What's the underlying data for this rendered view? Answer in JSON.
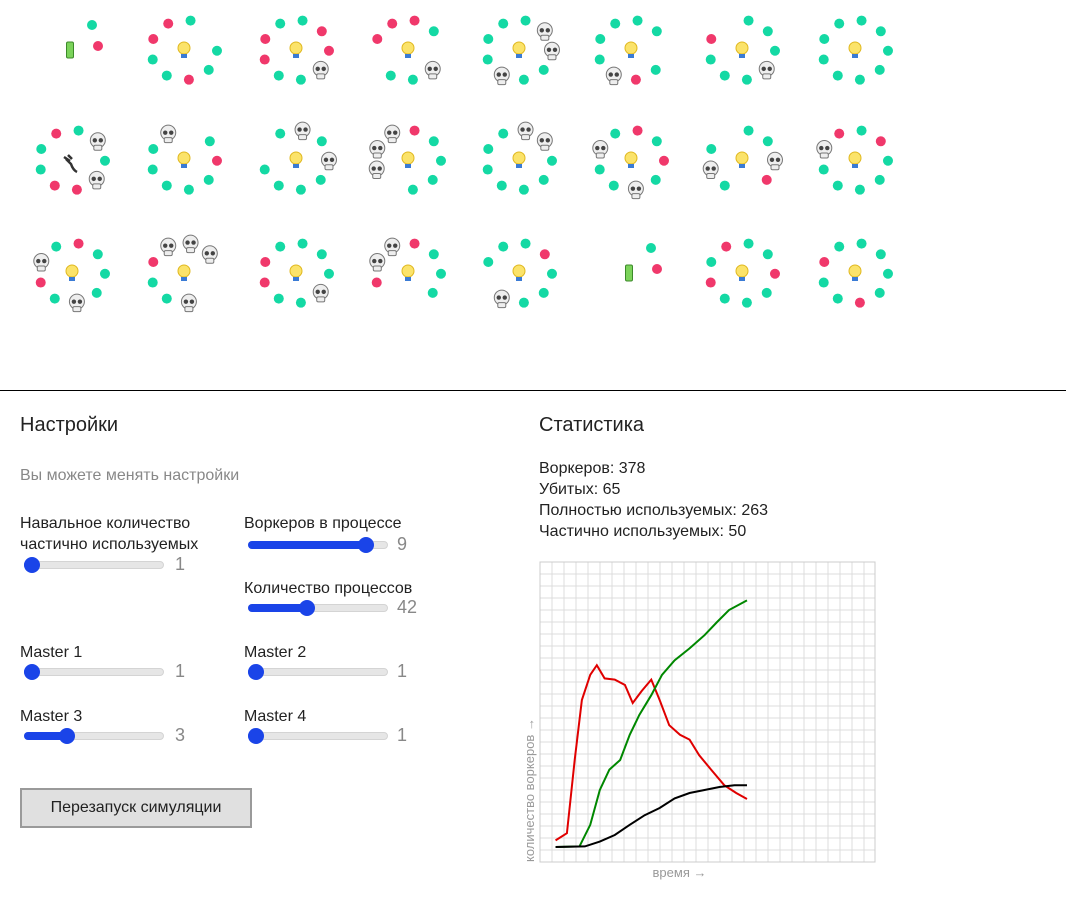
{
  "settings": {
    "title": "Настройки",
    "subtitle": "Вы можете менять настройки",
    "sliders": [
      {
        "label": "Навальное количество частично используемых",
        "value": 1,
        "min": 1,
        "max": 8
      },
      {
        "label": "Воркеров в процессе",
        "value": 9,
        "min": 1,
        "max": 10
      },
      {
        "label": "Количество процессов",
        "value": 42,
        "min": 1,
        "max": 100
      },
      {
        "label": "Master 1",
        "value": 1,
        "min": 1,
        "max": 8
      },
      {
        "label": "Master 2",
        "value": 1,
        "min": 1,
        "max": 8
      },
      {
        "label": "Master 3",
        "value": 3,
        "min": 1,
        "max": 8
      },
      {
        "label": "Master 4",
        "value": 1,
        "min": 1,
        "max": 8
      }
    ],
    "button": "Перезапуск симуляции"
  },
  "statistics": {
    "title": "Статистика",
    "lines": [
      "Воркеров: 378",
      "Убитых: 65",
      "Полностью используемых: 263",
      "Частично используемых: 50"
    ]
  },
  "chart_data": {
    "type": "line",
    "x_label": "время →",
    "y_label": "количество воркеров →",
    "xlim": [
      0,
      28
    ],
    "ylim": [
      0,
      25
    ],
    "grid": true,
    "series": [
      {
        "color": "#e00000",
        "x": [
          1.3,
          2.25,
          2.9,
          3.5,
          4.2,
          4.75,
          5.4,
          6.25,
          7.1,
          7.75,
          8.5,
          9.3,
          10,
          10.8,
          11.7,
          12.5,
          13.3,
          14.3,
          15.4,
          16.4,
          17.3
        ],
        "values": [
          1.8,
          2.4,
          8.5,
          13.5,
          15.6,
          16.4,
          15.3,
          15.2,
          14.75,
          13.25,
          14.25,
          15.2,
          13.5,
          11.4,
          10.6,
          10.2,
          8.9,
          7.7,
          6.4,
          5.75,
          5.25
        ]
      },
      {
        "color": "#008800",
        "x": [
          1.3,
          3.3,
          4.2,
          5,
          5.8,
          6.7,
          7.5,
          8.3,
          9.3,
          10.2,
          11.25,
          12.5,
          13.75,
          14.8,
          15.8,
          17.3
        ],
        "values": [
          1.25,
          1.3,
          3.1,
          6,
          7.7,
          8.5,
          10.6,
          12.25,
          13.9,
          15.6,
          16.8,
          17.8,
          18.9,
          20,
          21,
          21.8
        ]
      },
      {
        "color": "#000000",
        "x": [
          1.3,
          3.75,
          5,
          6.25,
          7.5,
          8.75,
          10,
          11.25,
          12.5,
          13.75,
          15,
          16.25,
          17.3
        ],
        "values": [
          1.25,
          1.3,
          1.7,
          2.25,
          3.1,
          3.9,
          4.5,
          5.3,
          5.75,
          6,
          6.25,
          6.4,
          6.4
        ]
      }
    ]
  }
}
